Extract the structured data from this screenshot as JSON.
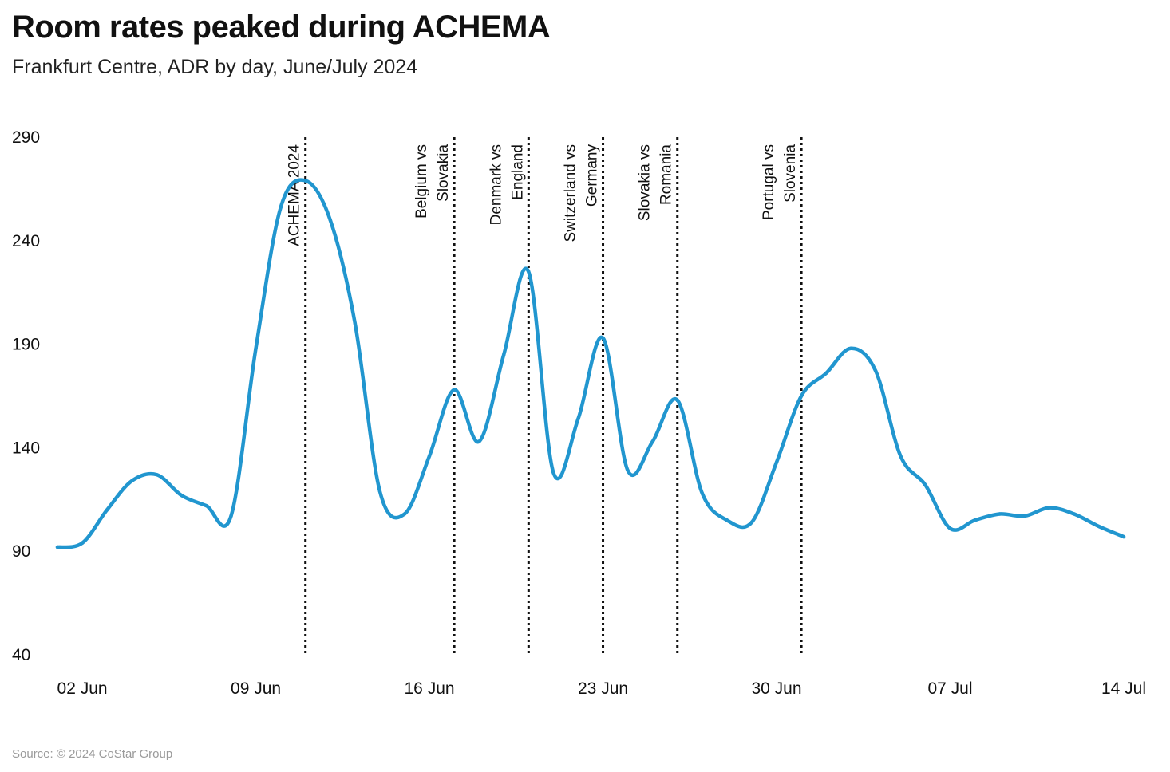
{
  "title": "Room rates peaked during ACHEMA",
  "subtitle": "Frankfurt Centre, ADR by day, June/July 2024",
  "source": "Source: © 2024 CoStar Group",
  "colors": {
    "line": "#2196cf",
    "event_line": "#111111"
  },
  "chart_data": {
    "type": "line",
    "title": "Room rates peaked during ACHEMA",
    "subtitle": "Frankfurt Centre, ADR by day, June/July 2024",
    "xlabel": "",
    "ylabel": "",
    "ylim": [
      40,
      290
    ],
    "yticks": [
      40,
      90,
      140,
      190,
      240,
      290
    ],
    "x_ticks": [
      {
        "date": "2024-06-02",
        "label": "02 Jun"
      },
      {
        "date": "2024-06-09",
        "label": "09 Jun"
      },
      {
        "date": "2024-06-16",
        "label": "16 Jun"
      },
      {
        "date": "2024-06-23",
        "label": "23 Jun"
      },
      {
        "date": "2024-06-30",
        "label": "30 Jun"
      },
      {
        "date": "2024-07-07",
        "label": "07 Jul"
      },
      {
        "date": "2024-07-14",
        "label": "14 Jul"
      }
    ],
    "grid": false,
    "series": [
      {
        "x": [
          "2024-06-01",
          "2024-06-02",
          "2024-06-03",
          "2024-06-04",
          "2024-06-05",
          "2024-06-06",
          "2024-06-07",
          "2024-06-08",
          "2024-06-09",
          "2024-06-10",
          "2024-06-11",
          "2024-06-12",
          "2024-06-13",
          "2024-06-14",
          "2024-06-15",
          "2024-06-16",
          "2024-06-17",
          "2024-06-18",
          "2024-06-19",
          "2024-06-20",
          "2024-06-21",
          "2024-06-22",
          "2024-06-23",
          "2024-06-24",
          "2024-06-25",
          "2024-06-26",
          "2024-06-27",
          "2024-06-28",
          "2024-06-29",
          "2024-06-30",
          "2024-07-01",
          "2024-07-02",
          "2024-07-03",
          "2024-07-04",
          "2024-07-05",
          "2024-07-06",
          "2024-07-07",
          "2024-07-08",
          "2024-07-09",
          "2024-07-10",
          "2024-07-11",
          "2024-07-12",
          "2024-07-13",
          "2024-07-14"
        ],
        "y": [
          92,
          94,
          110,
          124,
          127,
          117,
          112,
          107,
          188,
          256,
          269,
          250,
          200,
          119,
          108,
          136,
          168,
          143,
          185,
          225,
          128,
          154,
          193,
          129,
          143,
          163,
          118,
          105,
          104,
          133,
          165,
          176,
          188,
          177,
          136,
          122,
          101,
          105,
          108,
          107,
          111,
          108,
          102,
          97
        ]
      }
    ],
    "annotations": [
      {
        "date": "2024-06-11",
        "lines": [
          "ACHEMA 2024"
        ]
      },
      {
        "date": "2024-06-17",
        "lines": [
          "Belgium vs",
          "Slovakia"
        ]
      },
      {
        "date": "2024-06-20",
        "lines": [
          "Denmark vs",
          "England"
        ]
      },
      {
        "date": "2024-06-23",
        "lines": [
          "Switzerland vs",
          "Germany"
        ]
      },
      {
        "date": "2024-06-26",
        "lines": [
          "Slovakia vs",
          "Romania"
        ]
      },
      {
        "date": "2024-07-01",
        "lines": [
          "Portugal vs",
          "Slovenia"
        ]
      }
    ]
  }
}
